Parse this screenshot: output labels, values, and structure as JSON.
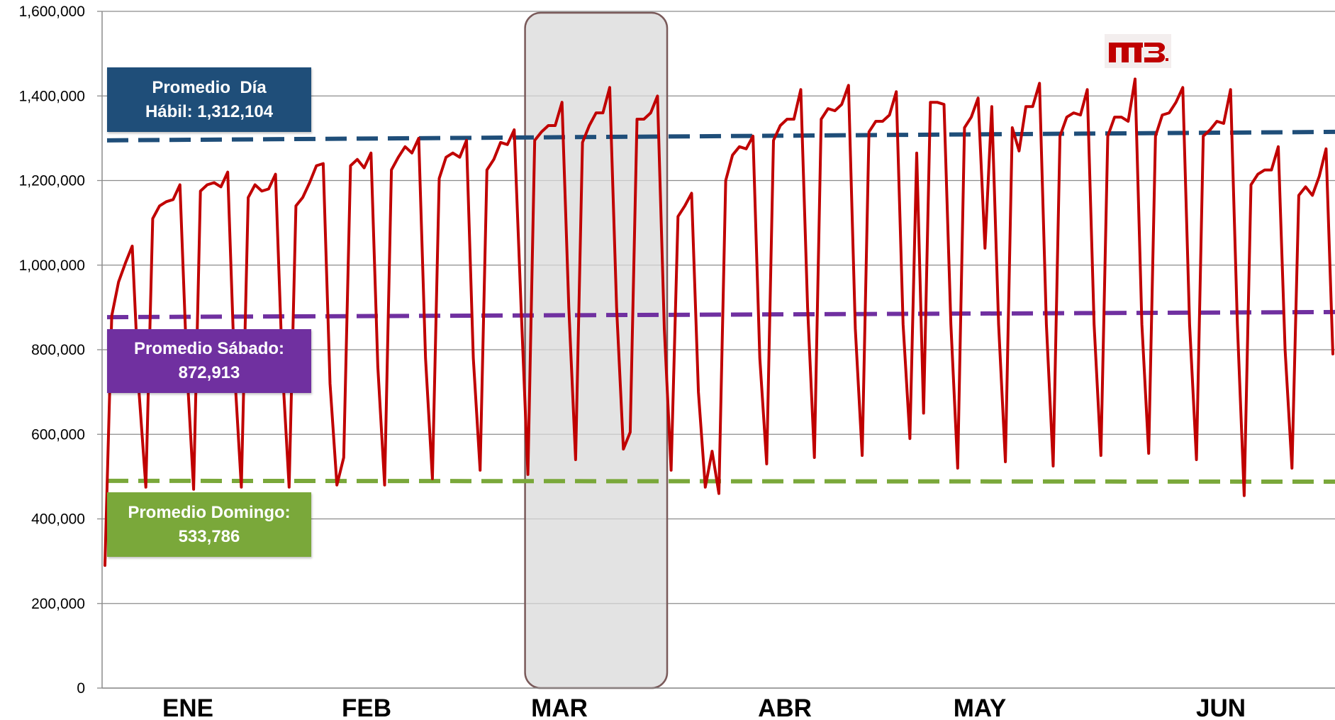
{
  "chart_data": {
    "type": "line",
    "title": "",
    "xlabel": "",
    "ylabel": "",
    "ylim": [
      0,
      1600000
    ],
    "y_ticks": [
      "0",
      "200,000",
      "400,000",
      "600,000",
      "800,000",
      "1,000,000",
      "1,200,000",
      "1,400,000",
      "1,600,000"
    ],
    "months": [
      "ENE",
      "FEB",
      "MAR",
      "ABR",
      "MAY",
      "JUN"
    ],
    "grid": "horizontal",
    "series": [
      {
        "color": "#c00000",
        "values": [
          290000,
          880000,
          960000,
          1005000,
          1045000,
          700000,
          475000,
          1110000,
          1140000,
          1150000,
          1155000,
          1190000,
          760000,
          470000,
          1175000,
          1190000,
          1195000,
          1185000,
          1220000,
          750000,
          475000,
          1160000,
          1190000,
          1175000,
          1180000,
          1215000,
          760000,
          475000,
          1140000,
          1160000,
          1195000,
          1235000,
          1240000,
          720000,
          480000,
          545000,
          1235000,
          1250000,
          1230000,
          1265000,
          760000,
          480000,
          1225000,
          1255000,
          1280000,
          1265000,
          1300000,
          780000,
          495000,
          1205000,
          1255000,
          1265000,
          1255000,
          1295000,
          780000,
          515000,
          1225000,
          1250000,
          1290000,
          1285000,
          1320000,
          900000,
          505000,
          1295000,
          1315000,
          1330000,
          1330000,
          1385000,
          900000,
          540000,
          1290000,
          1330000,
          1360000,
          1360000,
          1420000,
          900000,
          565000,
          605000,
          1345000,
          1345000,
          1360000,
          1400000,
          850000,
          515000,
          1115000,
          1140000,
          1170000,
          700000,
          475000,
          560000,
          460000,
          1200000,
          1260000,
          1280000,
          1275000,
          1305000,
          780000,
          530000,
          1295000,
          1330000,
          1345000,
          1345000,
          1415000,
          900000,
          545000,
          1345000,
          1370000,
          1365000,
          1380000,
          1425000,
          850000,
          550000,
          1315000,
          1340000,
          1340000,
          1355000,
          1410000,
          860000,
          590000,
          1265000,
          650000,
          1385000,
          1385000,
          1380000,
          860000,
          520000,
          1325000,
          1350000,
          1395000,
          1040000,
          1375000,
          860000,
          535000,
          1325000,
          1270000,
          1375000,
          1375000,
          1430000,
          860000,
          525000,
          1305000,
          1350000,
          1360000,
          1355000,
          1415000,
          860000,
          550000,
          1305000,
          1350000,
          1350000,
          1340000,
          1440000,
          860000,
          555000,
          1305000,
          1355000,
          1360000,
          1385000,
          1420000,
          860000,
          540000,
          1305000,
          1320000,
          1340000,
          1335000,
          1415000,
          860000,
          455000,
          1190000,
          1215000,
          1225000,
          1225000,
          1280000,
          800000,
          520000,
          1165000,
          1185000,
          1165000,
          1210000,
          1275000,
          790000
        ]
      }
    ],
    "reference_lines": [
      {
        "key": "habil",
        "color": "#1f4e79",
        "from": 1295000,
        "to": 1315000
      },
      {
        "key": "sabado",
        "color": "#7030a0",
        "from": 877000,
        "to": 889000
      },
      {
        "key": "domingo",
        "color": "#7aa83a",
        "from": 490000,
        "to": 488000
      }
    ],
    "highlight_band": {
      "start_index": 62,
      "end_index": 82,
      "color": "#d9d9d9"
    }
  },
  "annotations": {
    "habil": {
      "line1": "Promedio  Día",
      "line2": "Hábil: 1,312,104"
    },
    "sabado": {
      "line1": "Promedio Sábado:",
      "line2": "872,913"
    },
    "domingo": {
      "line1": "Promedio Domingo:",
      "line2": "533,786"
    }
  },
  "logo": {
    "icon": "metrobus-logo-icon",
    "text": "MB",
    "color": "#c00000"
  }
}
